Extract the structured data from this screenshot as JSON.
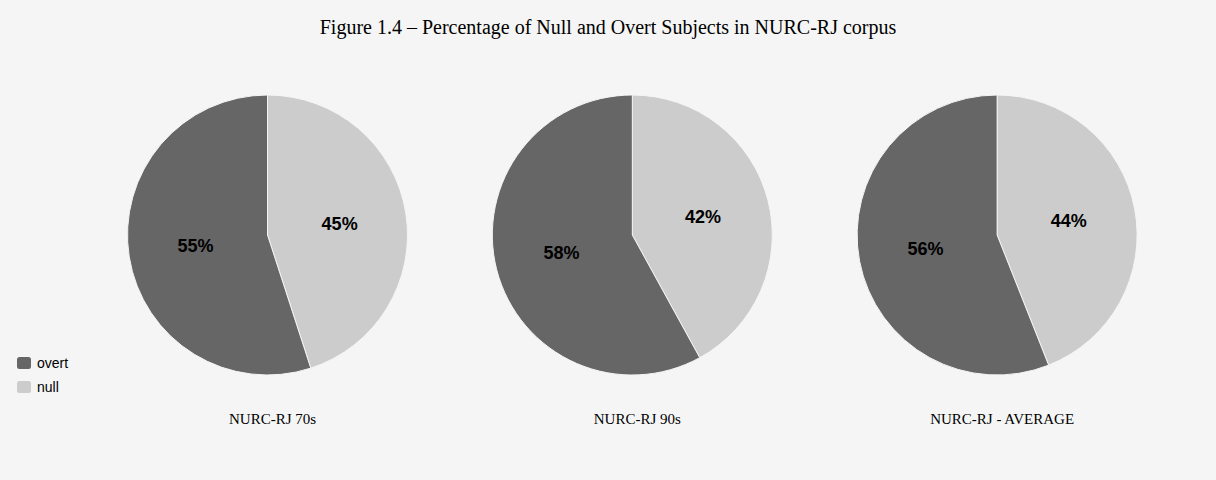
{
  "title": "Figure 1.4 – Percentage of Null and Overt Subjects in NURC-RJ corpus",
  "legend": "lower left",
  "chart_data": [
    {
      "type": "pie",
      "subtitle": "NURC-RJ 70s",
      "categories": [
        "null",
        "overt"
      ],
      "values": [
        45,
        55
      ],
      "value_labels": [
        "45%",
        "55%"
      ],
      "colors": [
        "#cccccc",
        "#666666"
      ],
      "data_labels": true
    },
    {
      "type": "pie",
      "subtitle": "NURC-RJ 90s",
      "categories": [
        "null",
        "overt"
      ],
      "values": [
        42,
        58
      ],
      "value_labels": [
        "42%",
        "58%"
      ],
      "colors": [
        "#cccccc",
        "#666666"
      ],
      "data_labels": true
    },
    {
      "type": "pie",
      "subtitle": "NURC-RJ - AVERAGE",
      "categories": [
        "null",
        "overt"
      ],
      "values": [
        44,
        56
      ],
      "value_labels": [
        "44%",
        "56%"
      ],
      "colors": [
        "#cccccc",
        "#666666"
      ],
      "data_labels": true
    }
  ]
}
